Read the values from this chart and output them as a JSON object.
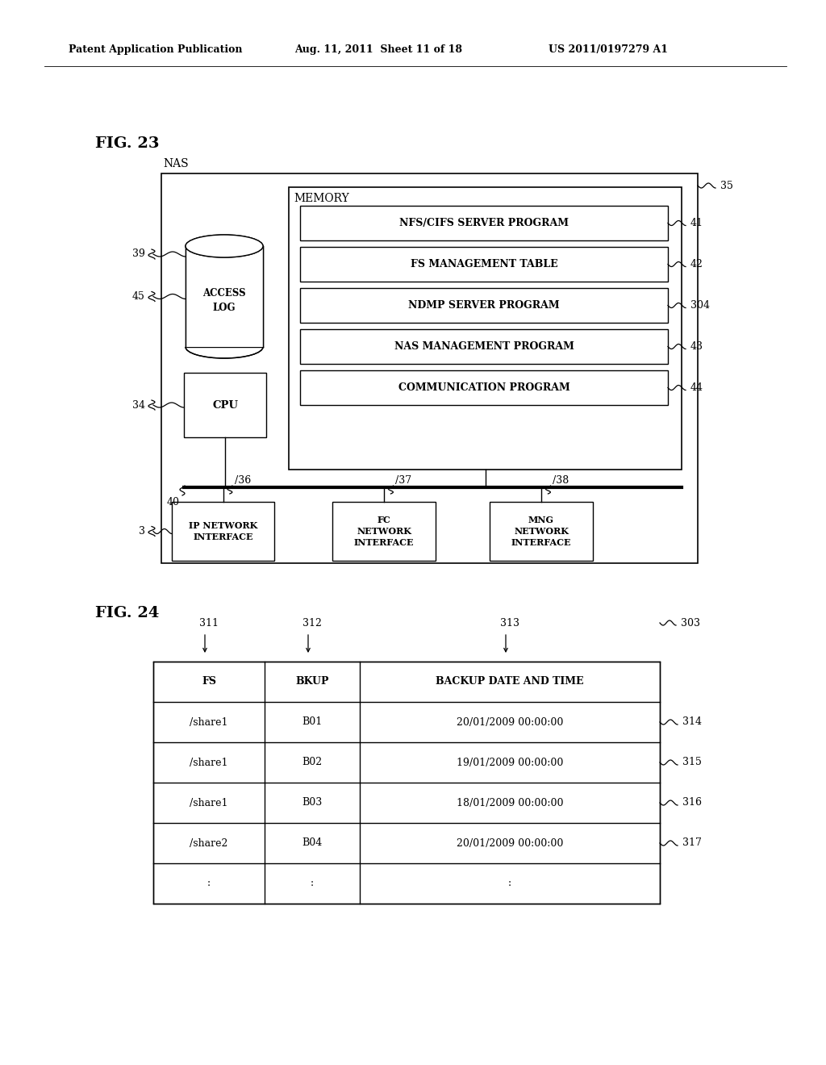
{
  "header_left": "Patent Application Publication",
  "header_mid": "Aug. 11, 2011  Sheet 11 of 18",
  "header_right": "US 2011/0197279 A1",
  "fig23_label": "FIG. 23",
  "fig24_label": "FIG. 24",
  "nas_label": "NAS",
  "memory_label": "MEMORY",
  "programs": [
    "NFS/CIFS SERVER PROGRAM",
    "FS MANAGEMENT TABLE",
    "NDMP SERVER PROGRAM",
    "NAS MANAGEMENT PROGRAM",
    "COMMUNICATION PROGRAM"
  ],
  "program_ids": [
    "41",
    "42",
    "304",
    "43",
    "44"
  ],
  "access_log_label": "ACCESS\nLOG",
  "cpu_label": "CPU",
  "interface_labels": [
    "IP NETWORK\nINTERFACE",
    "FC\nNETWORK\nINTERFACE",
    "MNG\nNETWORK\nINTERFACE"
  ],
  "interface_ids": [
    "36",
    "37",
    "38"
  ],
  "table_header": [
    "FS",
    "BKUP",
    "BACKUP DATE AND TIME"
  ],
  "table_col_ids": [
    "311",
    "312",
    "313"
  ],
  "table_id": "303",
  "table_rows": [
    [
      "/share1",
      "B01",
      "20/01/2009 00:00:00"
    ],
    [
      "/share1",
      "B02",
      "19/01/2009 00:00:00"
    ],
    [
      "/share1",
      "B03",
      "18/01/2009 00:00:00"
    ],
    [
      "/share2",
      "B04",
      "20/01/2009 00:00:00"
    ],
    [
      ":",
      ":",
      ":"
    ]
  ],
  "row_ids": [
    "314",
    "315",
    "316",
    "317",
    ""
  ],
  "bg_color": "#ffffff",
  "line_color": "#000000"
}
